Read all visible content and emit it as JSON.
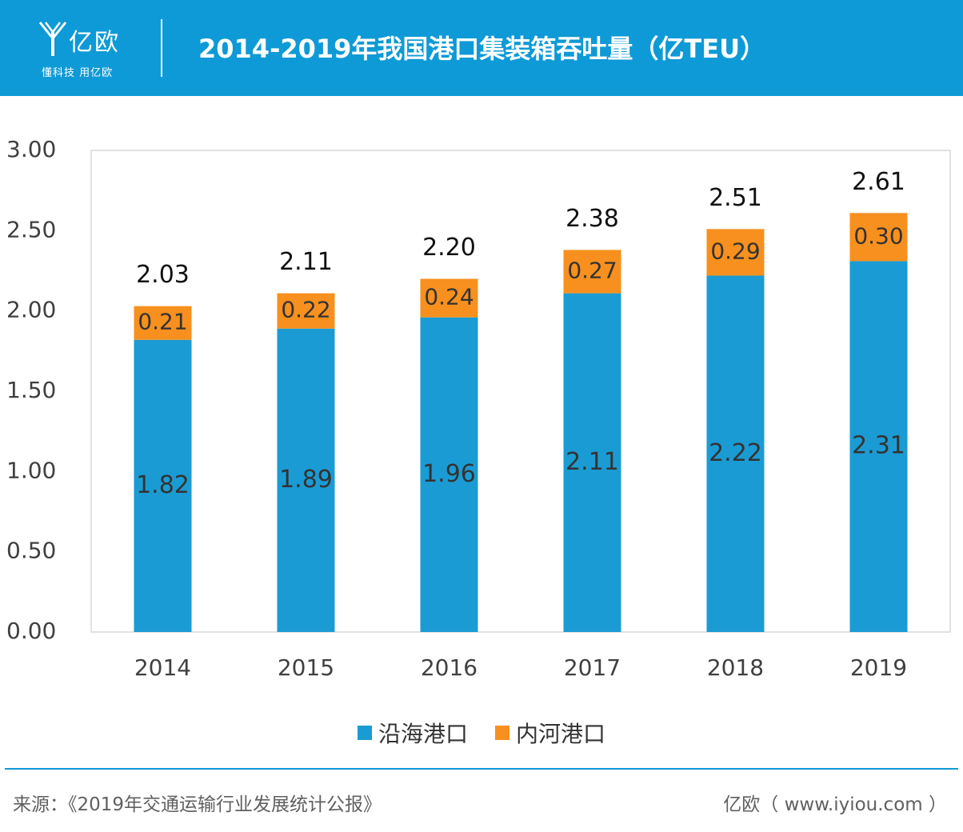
{
  "header": {
    "logo_name": "亿欧",
    "logo_slogan": "懂科技 用亿欧",
    "title": "2014-2019年我国港口集装箱吞吐量（亿TEU）",
    "background": "#0e9ad6"
  },
  "chart_data": {
    "type": "bar",
    "stacked": true,
    "categories": [
      "2014",
      "2015",
      "2016",
      "2017",
      "2018",
      "2019"
    ],
    "series": [
      {
        "name": "沿海港口",
        "color": "#1b9bd3",
        "values": [
          1.82,
          1.89,
          1.96,
          2.11,
          2.22,
          2.31
        ],
        "labels": [
          "1.82",
          "1.89",
          "1.96",
          "2.11",
          "2.22",
          "2.31"
        ]
      },
      {
        "name": "内河港口",
        "color": "#f7901e",
        "values": [
          0.21,
          0.22,
          0.24,
          0.27,
          0.29,
          0.3
        ],
        "labels": [
          "0.21",
          "0.22",
          "0.24",
          "0.27",
          "0.29",
          "0.30"
        ]
      }
    ],
    "totals": [
      "2.03",
      "2.11",
      "2.20",
      "2.38",
      "2.51",
      "2.61"
    ],
    "total_values": [
      2.03,
      2.11,
      2.2,
      2.38,
      2.51,
      2.61
    ],
    "ylim": [
      0,
      3
    ],
    "yticks": [
      "0.00",
      "0.50",
      "1.00",
      "1.50",
      "2.00",
      "2.50",
      "3.00"
    ],
    "ytick_values": [
      0,
      0.5,
      1,
      1.5,
      2,
      2.5,
      3
    ],
    "grid": false,
    "legend": "bottom"
  },
  "footer": {
    "source": "来源：《2019年交通运输行业发展统计公报》",
    "brand": "亿欧（ www.iyiou.com ）"
  }
}
